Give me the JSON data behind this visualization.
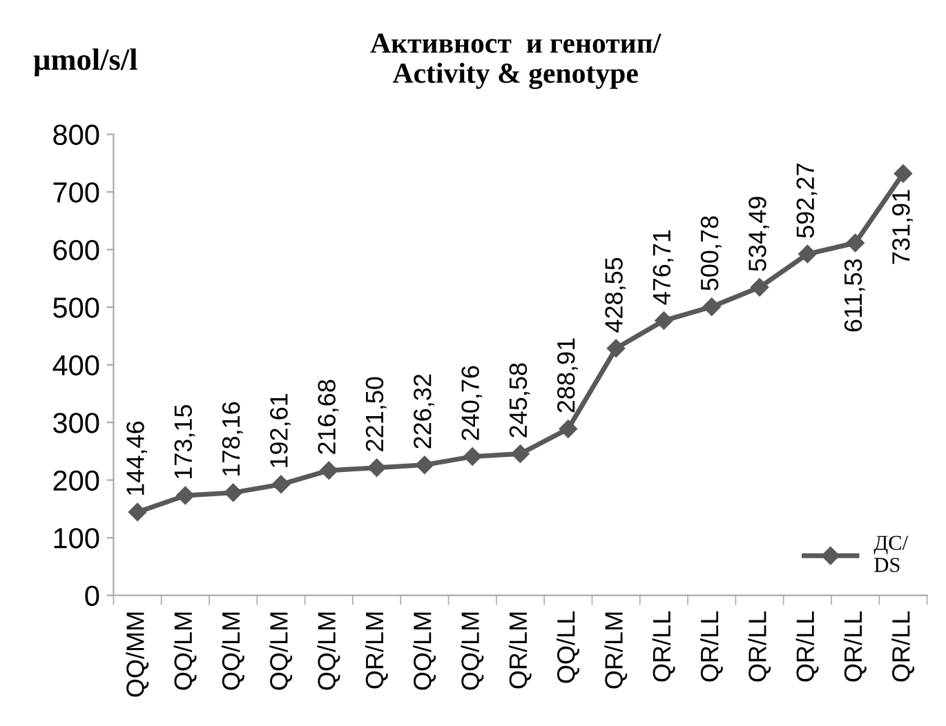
{
  "chart_data": {
    "type": "line",
    "title": "Активност  и генотип/\nActivity & genotype",
    "ylabel": "µmol/s/l",
    "categories": [
      "QQ/MM",
      "QQ/LM",
      "QQ/LM",
      "QQ/LM",
      "QQ/LM",
      "QR/LM",
      "QQ/LM",
      "QQ/LM",
      "QR/LM",
      "QQ/LL",
      "QR/LM",
      "QR/LL",
      "QR/LL",
      "QR/LL",
      "QR/LL",
      "QR/LL",
      "QR/LL"
    ],
    "series": [
      {
        "name": "ДС/\nDS",
        "color": "#595959",
        "values": [
          144.46,
          173.15,
          178.16,
          192.61,
          216.68,
          221.5,
          226.32,
          240.76,
          245.58,
          288.91,
          428.55,
          476.71,
          500.78,
          534.49,
          592.27,
          611.53,
          731.91
        ],
        "value_labels": [
          "144,46",
          "173,15",
          "178,16",
          "192,61",
          "216,68",
          "221,50",
          "226,32",
          "240,76",
          "245,58",
          "288,91",
          "428,55",
          "476,71",
          "500,78",
          "534,49",
          "592,27",
          "611,53",
          "731,91"
        ]
      }
    ],
    "ylim": [
      0,
      800
    ],
    "yticks": [
      0,
      100,
      200,
      300,
      400,
      500,
      600,
      700,
      800
    ],
    "marker": "diamond",
    "line_style": "solid",
    "grid": false,
    "legend": "bottom right"
  }
}
